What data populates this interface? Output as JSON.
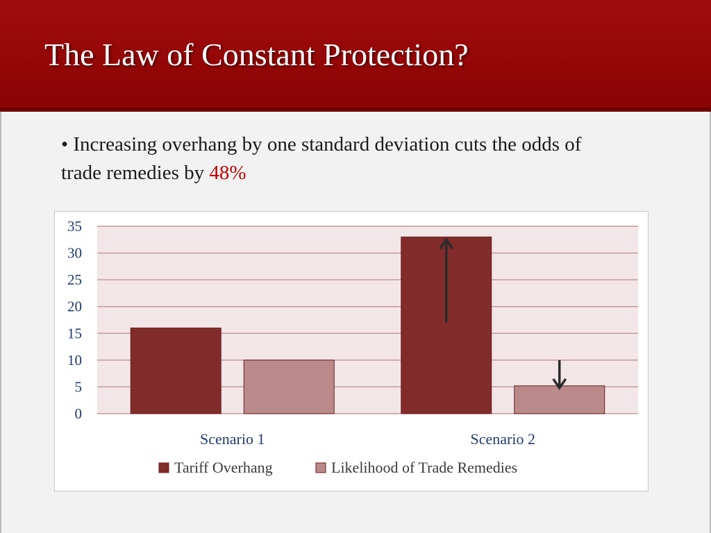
{
  "slide": {
    "title": "The Law of Constant Protection?",
    "bullet_prefix": "• Increasing overhang by one standard deviation cuts the odds of trade remedies by ",
    "bullet_highlight": "48%"
  },
  "colors": {
    "header": "#990000",
    "series_1": "#822b2b",
    "series_2": "#b98a89",
    "axis_text": "#1f3a6e",
    "plot_bg": "#f3e6e8",
    "highlight": "#c00000"
  },
  "chart_data": {
    "type": "bar",
    "categories": [
      "Scenario 1",
      "Scenario 2"
    ],
    "series": [
      {
        "name": "Tariff Overhang",
        "values": [
          16,
          33
        ]
      },
      {
        "name": "Likelihood of Trade Remedies",
        "values": [
          10,
          5.2
        ]
      }
    ],
    "ylim": [
      0,
      35
    ],
    "yticks": [
      0,
      5,
      10,
      15,
      20,
      25,
      30,
      35
    ],
    "grid": true,
    "legend": "bottom",
    "annotations": [
      {
        "type": "arrow",
        "direction": "up",
        "category": "Scenario 2",
        "series": "Tariff Overhang",
        "from": 17,
        "to": 32.5
      },
      {
        "type": "arrow",
        "direction": "down",
        "category": "Scenario 2",
        "series": "Likelihood of Trade Remedies",
        "from": 10,
        "to": 4.8
      }
    ]
  }
}
